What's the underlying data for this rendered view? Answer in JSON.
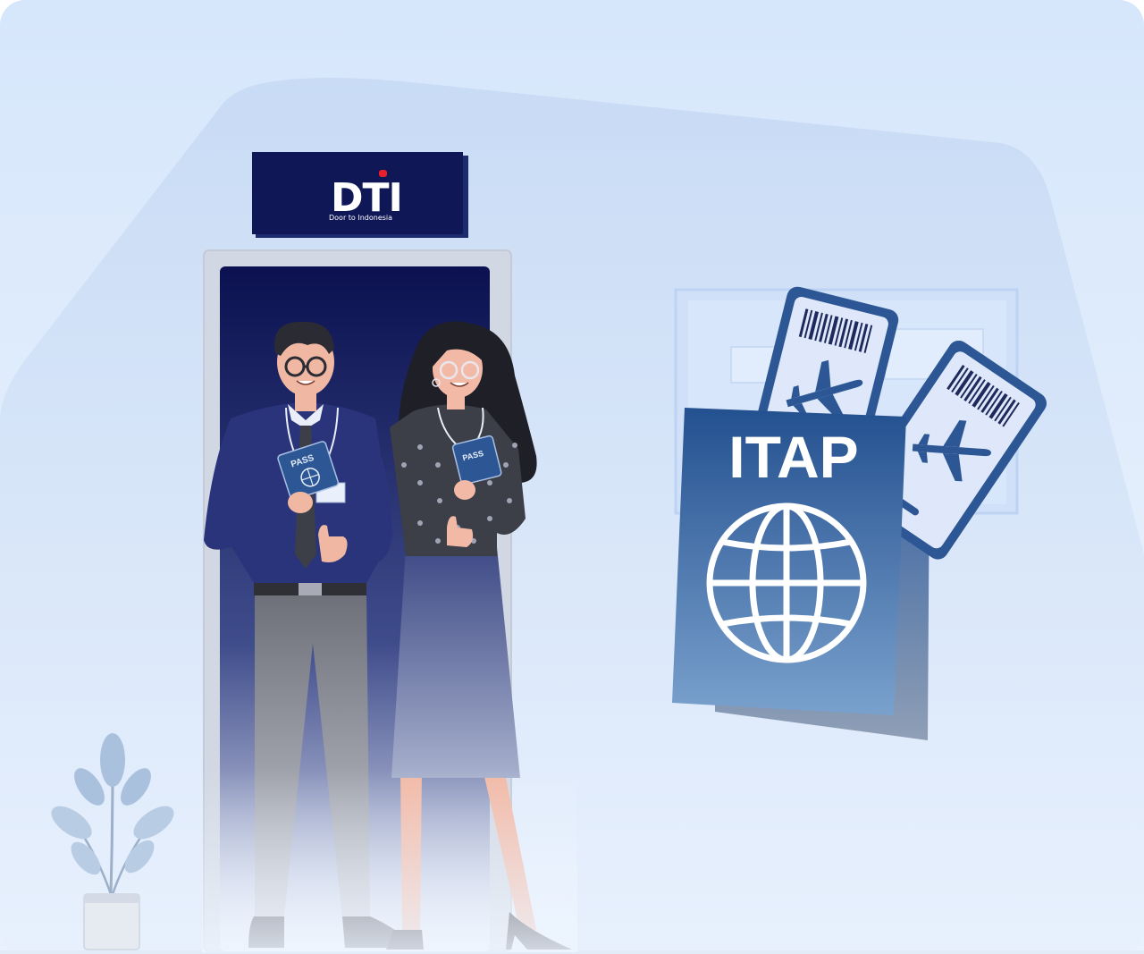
{
  "sign": {
    "logo": "DTI",
    "tagline": "Door to Indonesia"
  },
  "passport": {
    "title": "ITAP",
    "icon": "globe-icon"
  },
  "badges": {
    "man_badge_text": "PASS",
    "woman_badge_text": "PASS"
  },
  "icons": {
    "ticket_plane": "airplane-icon",
    "barcode": "barcode-icon",
    "plant": "potted-plant"
  },
  "colors": {
    "background_top": "#d6e6fb",
    "background_bottom": "#eef5fe",
    "door_dark": "#0b1150",
    "passport_blue": "#2c5794",
    "ticket_light": "#dfe8fa",
    "sign_navy": "#0f1757"
  }
}
